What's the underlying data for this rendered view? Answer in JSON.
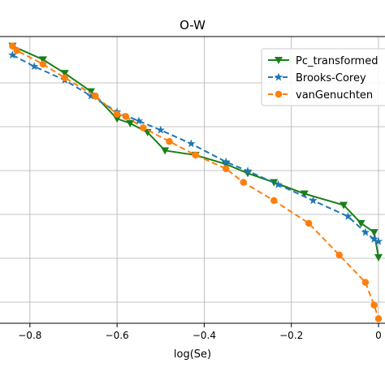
{
  "chart_data": {
    "type": "line",
    "title": "O-W",
    "xlabel": "log(Se)",
    "ylabel": "",
    "xlim": [
      -0.85,
      0.0
    ],
    "ylim": [
      0.0,
      6.2
    ],
    "xticks": [
      -0.8,
      -0.6,
      -0.4,
      -0.2,
      0.0
    ],
    "xtick_labels": [
      "−0.8",
      "−0.6",
      "−0.4",
      "−0.2",
      "0"
    ],
    "grid": true,
    "legend_position": "top-right",
    "series": [
      {
        "name": "Pc_transformed",
        "color": "#1a7f1a",
        "marker": "triangle-down",
        "dash": "solid",
        "x": [
          -0.84,
          -0.77,
          -0.72,
          -0.66,
          -0.6,
          -0.57,
          -0.53,
          -0.49,
          -0.42,
          -0.35,
          -0.3,
          -0.24,
          -0.17,
          -0.08,
          -0.04,
          -0.01,
          0.0
        ],
        "y": [
          6.1,
          5.8,
          5.5,
          5.1,
          4.5,
          4.4,
          4.2,
          3.8,
          3.7,
          3.5,
          3.3,
          3.1,
          2.85,
          2.6,
          2.2,
          2.0,
          1.45
        ]
      },
      {
        "name": "Brooks-Corey",
        "color": "#1f77b4",
        "marker": "star",
        "dash": "dashed",
        "x": [
          -0.84,
          -0.79,
          -0.72,
          -0.66,
          -0.6,
          -0.55,
          -0.5,
          -0.43,
          -0.35,
          -0.3,
          -0.23,
          -0.15,
          -0.07,
          -0.03,
          -0.01,
          0.0
        ],
        "y": [
          5.9,
          5.65,
          5.35,
          5.0,
          4.65,
          4.45,
          4.25,
          3.95,
          3.55,
          3.35,
          3.05,
          2.7,
          2.35,
          2.0,
          1.85,
          1.8
        ]
      },
      {
        "name": "vanGenuchten",
        "color": "#ff7f0e",
        "marker": "circle",
        "dash": "dashed",
        "x": [
          -0.84,
          -0.83,
          -0.77,
          -0.72,
          -0.65,
          -0.6,
          -0.58,
          -0.54,
          -0.48,
          -0.42,
          -0.35,
          -0.31,
          -0.24,
          -0.16,
          -0.09,
          -0.03,
          -0.01,
          0.0
        ],
        "y": [
          6.1,
          6.0,
          5.7,
          5.4,
          5.0,
          4.6,
          4.55,
          4.3,
          4.0,
          3.7,
          3.4,
          3.1,
          2.7,
          2.2,
          1.5,
          0.9,
          0.4,
          0.1
        ]
      }
    ]
  }
}
